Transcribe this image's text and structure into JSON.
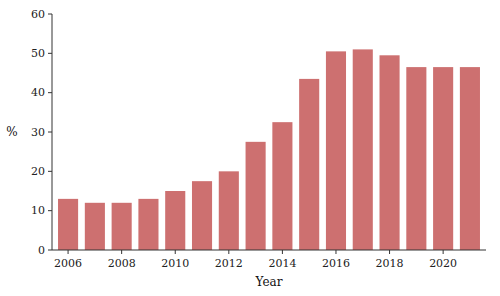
{
  "chart_data": {
    "type": "bar",
    "x": [
      2006,
      2007,
      2008,
      2009,
      2010,
      2011,
      2012,
      2013,
      2014,
      2015,
      2016,
      2017,
      2018,
      2019,
      2020,
      2021
    ],
    "values": [
      13.0,
      12.0,
      12.0,
      13.0,
      15.0,
      17.5,
      20.0,
      27.5,
      32.5,
      43.5,
      50.5,
      51.0,
      49.5,
      46.5,
      46.5,
      46.5
    ],
    "color": "#CD7070",
    "xlabel": "Year",
    "ylabel": "%",
    "xlim": [
      2005.4,
      2021.6
    ],
    "xticks": [
      2006,
      2008,
      2010,
      2012,
      2014,
      2016,
      2018,
      2020
    ],
    "ylim": [
      0,
      60
    ],
    "yticks": [
      0,
      10,
      20,
      30,
      40,
      50,
      60
    ],
    "grid": false
  }
}
